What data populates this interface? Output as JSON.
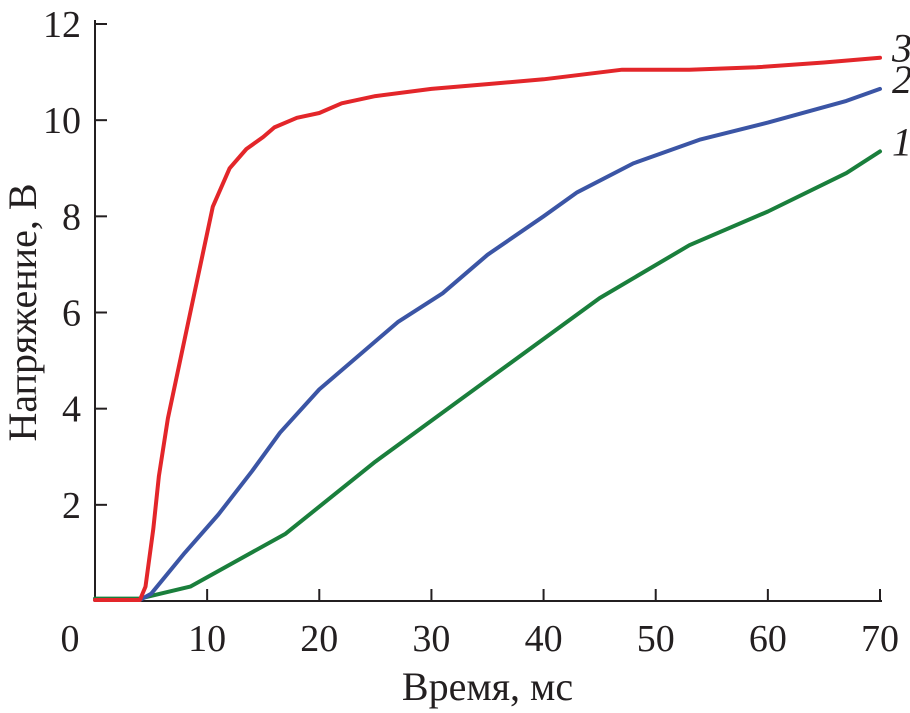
{
  "chart_data": {
    "type": "line",
    "title": "",
    "xlabel": "Время, мс",
    "ylabel": "Напряжение, В",
    "xlim": [
      0,
      70
    ],
    "ylim": [
      0,
      12
    ],
    "xticks": [
      0,
      10,
      20,
      30,
      40,
      50,
      60,
      70
    ],
    "yticks": [
      2,
      4,
      6,
      8,
      10,
      12
    ],
    "x_tick_labels": [
      "0",
      "10",
      "20",
      "30",
      "40",
      "50",
      "60",
      "70"
    ],
    "y_tick_labels": [
      "2",
      "4",
      "6",
      "8",
      "10",
      "12"
    ],
    "grid": false,
    "series": [
      {
        "name": "1",
        "color": "#1a7f3c",
        "points": [
          [
            0,
            0.05
          ],
          [
            4,
            0.05
          ],
          [
            8.5,
            0.3
          ],
          [
            17,
            1.4
          ],
          [
            25,
            2.9
          ],
          [
            35,
            4.6
          ],
          [
            45,
            6.3
          ],
          [
            53,
            7.4
          ],
          [
            60,
            8.1
          ],
          [
            67,
            8.9
          ],
          [
            70,
            9.35
          ]
        ]
      },
      {
        "name": "2",
        "color": "#3b55a5",
        "points": [
          [
            0,
            0.02
          ],
          [
            4,
            0.02
          ],
          [
            5,
            0.15
          ],
          [
            8,
            1.0
          ],
          [
            11,
            1.8
          ],
          [
            14,
            2.7
          ],
          [
            16.5,
            3.5
          ],
          [
            20,
            4.4
          ],
          [
            24,
            5.2
          ],
          [
            27,
            5.8
          ],
          [
            31,
            6.4
          ],
          [
            35,
            7.2
          ],
          [
            40,
            8.0
          ],
          [
            43,
            8.5
          ],
          [
            48,
            9.1
          ],
          [
            54,
            9.6
          ],
          [
            60,
            9.95
          ],
          [
            67,
            10.4
          ],
          [
            70,
            10.65
          ]
        ]
      },
      {
        "name": "3",
        "color": "#e3262a",
        "points": [
          [
            0,
            0.02
          ],
          [
            4,
            0.02
          ],
          [
            4.5,
            0.3
          ],
          [
            5.2,
            1.5
          ],
          [
            5.7,
            2.6
          ],
          [
            6.5,
            3.8
          ],
          [
            8.5,
            6.0
          ],
          [
            10.5,
            8.2
          ],
          [
            12,
            9.0
          ],
          [
            13.5,
            9.4
          ],
          [
            15,
            9.65
          ],
          [
            16,
            9.85
          ],
          [
            18,
            10.05
          ],
          [
            20,
            10.15
          ],
          [
            22,
            10.35
          ],
          [
            25,
            10.5
          ],
          [
            30,
            10.65
          ],
          [
            35,
            10.75
          ],
          [
            40,
            10.85
          ],
          [
            47,
            11.05
          ],
          [
            53,
            11.05
          ],
          [
            59,
            11.1
          ],
          [
            65,
            11.2
          ],
          [
            70,
            11.3
          ]
        ]
      }
    ]
  }
}
